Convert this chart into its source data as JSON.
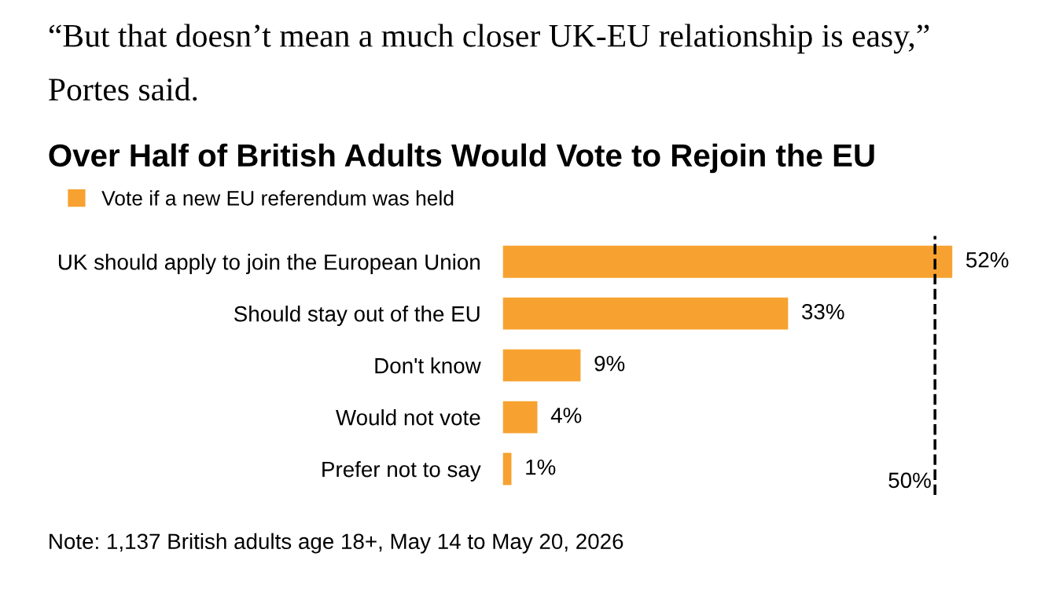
{
  "chart_data": {
    "type": "bar",
    "orientation": "horizontal",
    "title": "Over Half of British Adults Would Vote to Rejoin the EU",
    "categories": [
      "UK should apply to join the European Union",
      "Should stay out of the EU",
      "Don't know",
      "Would not vote",
      "Prefer not to say"
    ],
    "series": [
      {
        "name": "Vote if a new EU referendum was held",
        "color": "#f7a230",
        "values": [
          52,
          33,
          9,
          4,
          1
        ],
        "value_labels": [
          "52%",
          "33%",
          "9%",
          "4%",
          "1%"
        ]
      }
    ],
    "grid": false,
    "legend": "top left",
    "ref_lines": [
      {
        "axis": "x",
        "value": 50,
        "label": "50%",
        "color": "#000000",
        "line_style": "dashed"
      }
    ],
    "annotations": [
      "“But that doesn’t mean a much closer UK-EU relationship is easy,”",
      "Portes said.",
      "Note: 1,137 British adults age 18+, May 14 to May 20, 2026"
    ]
  }
}
